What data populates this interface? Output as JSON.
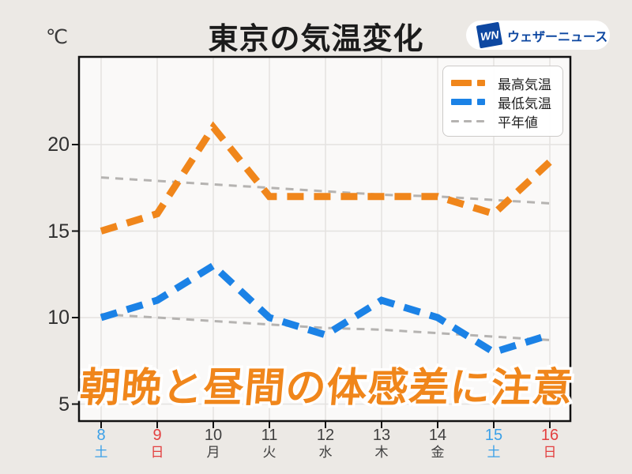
{
  "header": {
    "unit": "℃",
    "title": "東京の気温変化",
    "logo": {
      "mark": "WN",
      "name": "ウェザーニュース"
    }
  },
  "overlay": {
    "text": "朝晩と昼間の体感差に注意"
  },
  "legend": [
    {
      "label": "最高気温",
      "style": "bold",
      "color": "#F0861B"
    },
    {
      "label": "最低気温",
      "style": "bold",
      "color": "#1B82E6"
    },
    {
      "label": "平年値",
      "style": "thin",
      "color": "#B5B3B1"
    }
  ],
  "colors": {
    "max_temp": "#F0861B",
    "min_temp": "#1B82E6",
    "normal": "#B5B3B1",
    "saturday": "#3AA0E8",
    "sunday": "#E34040",
    "weekday": "#3F3F3F",
    "grid": "#E4E2E0",
    "frame": "#111111",
    "plot_bg": "#FAF9F8",
    "page_bg": "#ECE9E5",
    "brand_blue": "#0D47A1"
  },
  "chart_data": {
    "type": "line",
    "title": "東京の気温変化",
    "xlabel": "",
    "ylabel": "℃",
    "x": [
      8,
      9,
      10,
      11,
      12,
      13,
      14,
      15,
      16
    ],
    "x_labels": [
      "8",
      "9",
      "10",
      "11",
      "12",
      "13",
      "14",
      "15",
      "16"
    ],
    "weekday_labels": [
      "土",
      "日",
      "月",
      "火",
      "水",
      "木",
      "金",
      "土",
      "日"
    ],
    "weekday_types": [
      "sat",
      "sun",
      "wd",
      "wd",
      "wd",
      "wd",
      "wd",
      "sat",
      "sun"
    ],
    "ylim": [
      4,
      25
    ],
    "yticks": [
      5,
      10,
      15,
      20
    ],
    "grid": true,
    "legend_position": "top-right",
    "series": [
      {
        "name": "最高気温",
        "role": "max",
        "color": "#F0861B",
        "dash": "bold",
        "values": [
          15,
          16,
          21,
          17,
          17,
          17,
          17,
          16,
          19
        ]
      },
      {
        "name": "最低気温",
        "role": "min",
        "color": "#1B82E6",
        "dash": "bold",
        "values": [
          10,
          11,
          13,
          10,
          9,
          11,
          10,
          8,
          9
        ]
      },
      {
        "name": "平年値(最高)",
        "role": "normal-max",
        "color": "#B5B3B1",
        "dash": "thin",
        "values": [
          18.1,
          17.9,
          17.7,
          17.5,
          17.3,
          17.1,
          17.0,
          16.8,
          16.6
        ]
      },
      {
        "name": "平年値(最低)",
        "role": "normal-min",
        "color": "#B5B3B1",
        "dash": "thin",
        "values": [
          10.2,
          10.0,
          9.8,
          9.6,
          9.4,
          9.3,
          9.1,
          8.9,
          8.7
        ]
      }
    ]
  }
}
